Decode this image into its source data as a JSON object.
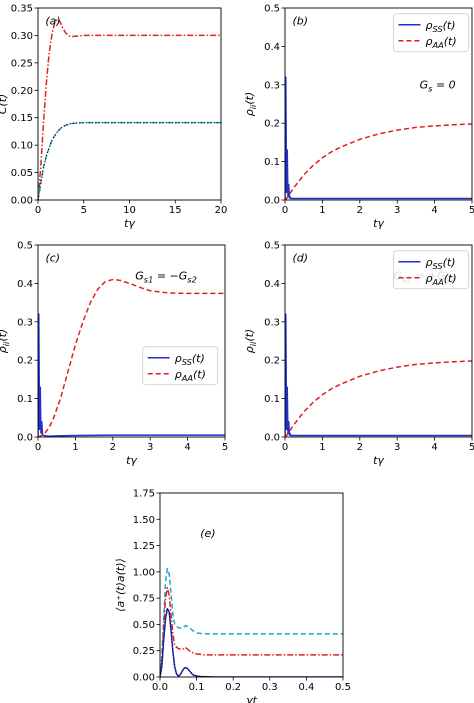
{
  "chart_data": [
    {
      "type": "line",
      "annotation": "(a)",
      "xlabel": "tγ",
      "ylabel": "C(t)",
      "xlim": [
        0,
        20
      ],
      "ylim": [
        0,
        0.35
      ],
      "xticks": [
        0,
        5,
        10,
        15,
        20
      ],
      "yticks": [
        0.0,
        0.05,
        0.1,
        0.15,
        0.2,
        0.25,
        0.3,
        0.35
      ],
      "ytick_labels": [
        "0.00",
        "0.05",
        "0.10",
        "0.15",
        "0.20",
        "0.25",
        "0.30",
        "0.35"
      ],
      "grid": false,
      "series": [
        {
          "color": "#dd2020",
          "dash": "dashdot",
          "x": [
            0,
            0.3,
            0.6,
            0.9,
            1.2,
            1.5,
            1.8,
            2.1,
            2.4,
            2.7,
            3.0,
            3.4,
            3.8,
            4.3,
            5,
            6,
            8,
            10,
            14,
            20
          ],
          "y": [
            0,
            0.06,
            0.14,
            0.21,
            0.265,
            0.3,
            0.322,
            0.33,
            0.325,
            0.314,
            0.305,
            0.299,
            0.298,
            0.299,
            0.3,
            0.3,
            0.3,
            0.3,
            0.3,
            0.3
          ]
        },
        {
          "color": "#1ea8c8",
          "dash": "dashed",
          "x": [
            0,
            0.3,
            0.6,
            1.0,
            1.5,
            2.0,
            2.5,
            3.0,
            3.5,
            4.0,
            5,
            6,
            8,
            10,
            15,
            20
          ],
          "y": [
            0,
            0.03,
            0.06,
            0.085,
            0.108,
            0.122,
            0.131,
            0.136,
            0.139,
            0.14,
            0.141,
            0.141,
            0.141,
            0.141,
            0.141,
            0.141
          ]
        },
        {
          "color": "#111111",
          "dash": "dotted",
          "x": [
            0,
            0.3,
            0.6,
            1.0,
            1.5,
            2.0,
            2.5,
            3.0,
            3.5,
            4.0,
            5,
            6,
            8,
            10,
            15,
            20
          ],
          "y": [
            0,
            0.03,
            0.06,
            0.085,
            0.108,
            0.122,
            0.131,
            0.136,
            0.139,
            0.14,
            0.141,
            0.141,
            0.141,
            0.141,
            0.141,
            0.141
          ]
        }
      ]
    },
    {
      "type": "line",
      "annotation": "(b)",
      "text_annotation": "G_s = 0",
      "xlabel": "tγ",
      "ylabel": "ρ_ii(t)",
      "xlim": [
        0,
        5
      ],
      "ylim": [
        0,
        0.5
      ],
      "xticks": [
        0,
        1,
        2,
        3,
        4,
        5
      ],
      "yticks": [
        0.0,
        0.1,
        0.2,
        0.3,
        0.4,
        0.5
      ],
      "ytick_labels": [
        "0.0",
        "0.1",
        "0.2",
        "0.3",
        "0.4",
        "0.5"
      ],
      "grid": false,
      "legend": {
        "placement": "top-right",
        "entries": [
          "ρ_SS(t)",
          "ρ_AA(t)"
        ]
      },
      "series": [
        {
          "name": "ρ_SS(t)",
          "color": "#1f2fd0",
          "dash": "solid",
          "x": [
            0,
            0.01,
            0.02,
            0.03,
            0.04,
            0.05,
            0.06,
            0.07,
            0.08,
            0.09,
            0.1,
            0.11,
            0.12,
            0.14,
            0.16,
            0.2,
            0.3,
            0.5,
            1,
            2,
            3,
            4,
            5
          ],
          "y": [
            0,
            0.15,
            0.32,
            0.18,
            0.02,
            0.06,
            0.13,
            0.06,
            0.01,
            0.02,
            0.04,
            0.02,
            0.005,
            0.008,
            0.004,
            0.004,
            0.004,
            0.004,
            0.004,
            0.004,
            0.004,
            0.004,
            0.004
          ]
        },
        {
          "name": "ρ_AA(t)",
          "color": "#dd2020",
          "dash": "dashed",
          "x": [
            0,
            0.05,
            0.1,
            0.2,
            0.3,
            0.5,
            0.75,
            1,
            1.25,
            1.5,
            2,
            2.5,
            3,
            3.5,
            4,
            4.5,
            5
          ],
          "y": [
            0.0,
            0.005,
            0.012,
            0.027,
            0.04,
            0.065,
            0.09,
            0.11,
            0.126,
            0.138,
            0.158,
            0.172,
            0.182,
            0.189,
            0.193,
            0.196,
            0.198
          ]
        }
      ]
    },
    {
      "type": "line",
      "annotation": "(c)",
      "text_annotation": "G_s1 = −G_s2",
      "xlabel": "tγ",
      "ylabel": "ρ_ii(t)",
      "xlim": [
        0,
        5
      ],
      "ylim": [
        0,
        0.5
      ],
      "xticks": [
        0,
        1,
        2,
        3,
        4,
        5
      ],
      "yticks": [
        0.0,
        0.1,
        0.2,
        0.3,
        0.4,
        0.5
      ],
      "ytick_labels": [
        "0.0",
        "0.1",
        "0.2",
        "0.3",
        "0.4",
        "0.5"
      ],
      "grid": false,
      "legend": {
        "placement": "center-right",
        "entries": [
          "ρ_SS(t)",
          "ρ_AA(t)"
        ]
      },
      "series": [
        {
          "name": "ρ_SS(t)",
          "color": "#1f2fd0",
          "dash": "solid",
          "x": [
            0,
            0.01,
            0.02,
            0.03,
            0.04,
            0.05,
            0.06,
            0.07,
            0.08,
            0.09,
            0.1,
            0.12,
            0.16,
            0.2,
            0.3,
            0.5,
            1,
            2,
            3,
            4,
            5
          ],
          "y": [
            0,
            0.15,
            0.32,
            0.18,
            0.02,
            0.06,
            0.13,
            0.06,
            0.01,
            0.02,
            0.04,
            0.005,
            0.004,
            0.003,
            0.002,
            0.003,
            0.004,
            0.005,
            0.005,
            0.005,
            0.005
          ]
        },
        {
          "name": "ρ_AA(t)",
          "color": "#dd2020",
          "dash": "dashed",
          "x": [
            0,
            0.1,
            0.2,
            0.3,
            0.4,
            0.6,
            0.8,
            1.0,
            1.2,
            1.4,
            1.6,
            1.8,
            2.0,
            2.2,
            2.5,
            2.8,
            3.0,
            3.5,
            4.0,
            4.5,
            5.0
          ],
          "y": [
            0.0,
            0.004,
            0.012,
            0.025,
            0.045,
            0.1,
            0.17,
            0.24,
            0.3,
            0.35,
            0.385,
            0.405,
            0.41,
            0.408,
            0.398,
            0.387,
            0.381,
            0.375,
            0.374,
            0.374,
            0.374
          ]
        }
      ]
    },
    {
      "type": "line",
      "annotation": "(d)",
      "text_annotation": "G_s1 = +G_s2",
      "xlabel": "tγ",
      "ylabel": "ρ_ii(t)",
      "xlim": [
        0,
        5
      ],
      "ylim": [
        0,
        0.5
      ],
      "xticks": [
        0,
        1,
        2,
        3,
        4,
        5
      ],
      "yticks": [
        0.0,
        0.1,
        0.2,
        0.3,
        0.4,
        0.5
      ],
      "ytick_labels": [
        "0.0",
        "0.1",
        "0.2",
        "0.3",
        "0.4",
        "0.5"
      ],
      "grid": false,
      "legend": {
        "placement": "top-right",
        "entries": [
          "ρ_SS(t)",
          "ρ_AA(t)"
        ]
      },
      "series": [
        {
          "name": "ρ_SS(t)",
          "color": "#1f2fd0",
          "dash": "solid",
          "x": [
            0,
            0.01,
            0.02,
            0.03,
            0.04,
            0.05,
            0.06,
            0.07,
            0.08,
            0.09,
            0.1,
            0.11,
            0.12,
            0.14,
            0.16,
            0.2,
            0.3,
            0.5,
            1,
            2,
            3,
            4,
            5
          ],
          "y": [
            0,
            0.15,
            0.32,
            0.18,
            0.02,
            0.06,
            0.13,
            0.06,
            0.01,
            0.02,
            0.04,
            0.02,
            0.005,
            0.008,
            0.004,
            0.004,
            0.004,
            0.004,
            0.004,
            0.004,
            0.004,
            0.004,
            0.004
          ]
        },
        {
          "name": "ρ_AA(t)",
          "color": "#dd2020",
          "dash": "dashed",
          "x": [
            0,
            0.05,
            0.1,
            0.2,
            0.3,
            0.5,
            0.75,
            1,
            1.25,
            1.5,
            2,
            2.5,
            3,
            3.5,
            4,
            4.5,
            5
          ],
          "y": [
            0.0,
            0.005,
            0.012,
            0.027,
            0.04,
            0.065,
            0.09,
            0.11,
            0.126,
            0.138,
            0.158,
            0.172,
            0.182,
            0.189,
            0.193,
            0.196,
            0.198
          ]
        }
      ]
    },
    {
      "type": "line",
      "annotation": "(e)",
      "xlabel": "γt",
      "ylabel": "⟨a⁺(t)a(t)⟩",
      "xlim": [
        0,
        0.5
      ],
      "ylim": [
        0,
        1.75
      ],
      "xticks": [
        0.0,
        0.1,
        0.2,
        0.3,
        0.4,
        0.5
      ],
      "xtick_labels": [
        "0.0",
        "0.1",
        "0.2",
        "0.3",
        "0.4",
        "0.5"
      ],
      "yticks": [
        0.0,
        0.25,
        0.5,
        0.75,
        1.0,
        1.25,
        1.5,
        1.75
      ],
      "ytick_labels": [
        "0.00",
        "0.25",
        "0.50",
        "0.75",
        "1.00",
        "1.25",
        "1.50",
        "1.75"
      ],
      "grid": false,
      "series": [
        {
          "color": "#1ea8c8",
          "dash": "dashed",
          "x": [
            0,
            0.005,
            0.01,
            0.015,
            0.02,
            0.025,
            0.03,
            0.035,
            0.04,
            0.05,
            0.06,
            0.07,
            0.08,
            0.09,
            0.1,
            0.12,
            0.15,
            0.2,
            0.3,
            0.4,
            0.5
          ],
          "y": [
            0,
            0.2,
            0.55,
            0.9,
            1.03,
            0.98,
            0.8,
            0.6,
            0.5,
            0.47,
            0.46,
            0.49,
            0.47,
            0.44,
            0.42,
            0.41,
            0.41,
            0.41,
            0.41,
            0.41,
            0.41
          ]
        },
        {
          "color": "#dd2020",
          "dash": "dashdot",
          "x": [
            0,
            0.005,
            0.01,
            0.015,
            0.02,
            0.025,
            0.03,
            0.035,
            0.04,
            0.05,
            0.06,
            0.07,
            0.08,
            0.09,
            0.1,
            0.12,
            0.15,
            0.2,
            0.3,
            0.4,
            0.5
          ],
          "y": [
            0,
            0.15,
            0.45,
            0.75,
            0.85,
            0.78,
            0.6,
            0.42,
            0.3,
            0.27,
            0.26,
            0.28,
            0.25,
            0.23,
            0.22,
            0.21,
            0.21,
            0.21,
            0.21,
            0.21,
            0.21
          ]
        },
        {
          "color": "#1f2fd0",
          "dash": "solid",
          "x": [
            0,
            0.005,
            0.01,
            0.015,
            0.02,
            0.025,
            0.03,
            0.035,
            0.04,
            0.045,
            0.05,
            0.055,
            0.06,
            0.065,
            0.07,
            0.075,
            0.08,
            0.085,
            0.09,
            0.1,
            0.11,
            0.13,
            0.15,
            0.2,
            0.3,
            0.4,
            0.5
          ],
          "y": [
            0,
            0.1,
            0.35,
            0.55,
            0.65,
            0.62,
            0.45,
            0.25,
            0.1,
            0.03,
            0.01,
            0.02,
            0.05,
            0.08,
            0.09,
            0.08,
            0.06,
            0.04,
            0.02,
            0.01,
            0.005,
            0.002,
            0.0,
            0.0,
            0.0,
            0.0,
            0.0
          ]
        },
        {
          "color": "#111111",
          "dash": "dotted",
          "x": [
            0,
            0.005,
            0.01,
            0.015,
            0.02,
            0.025,
            0.03,
            0.035,
            0.04,
            0.045,
            0.05,
            0.055,
            0.06,
            0.065,
            0.07,
            0.075,
            0.08,
            0.085,
            0.09,
            0.1,
            0.11,
            0.13,
            0.15,
            0.2,
            0.3,
            0.4,
            0.5
          ],
          "y": [
            0,
            0.1,
            0.35,
            0.55,
            0.65,
            0.62,
            0.45,
            0.25,
            0.1,
            0.03,
            0.01,
            0.02,
            0.05,
            0.08,
            0.09,
            0.08,
            0.06,
            0.04,
            0.02,
            0.01,
            0.005,
            0.002,
            0.0,
            0.0,
            0.0,
            0.0,
            0.0
          ]
        }
      ]
    }
  ]
}
